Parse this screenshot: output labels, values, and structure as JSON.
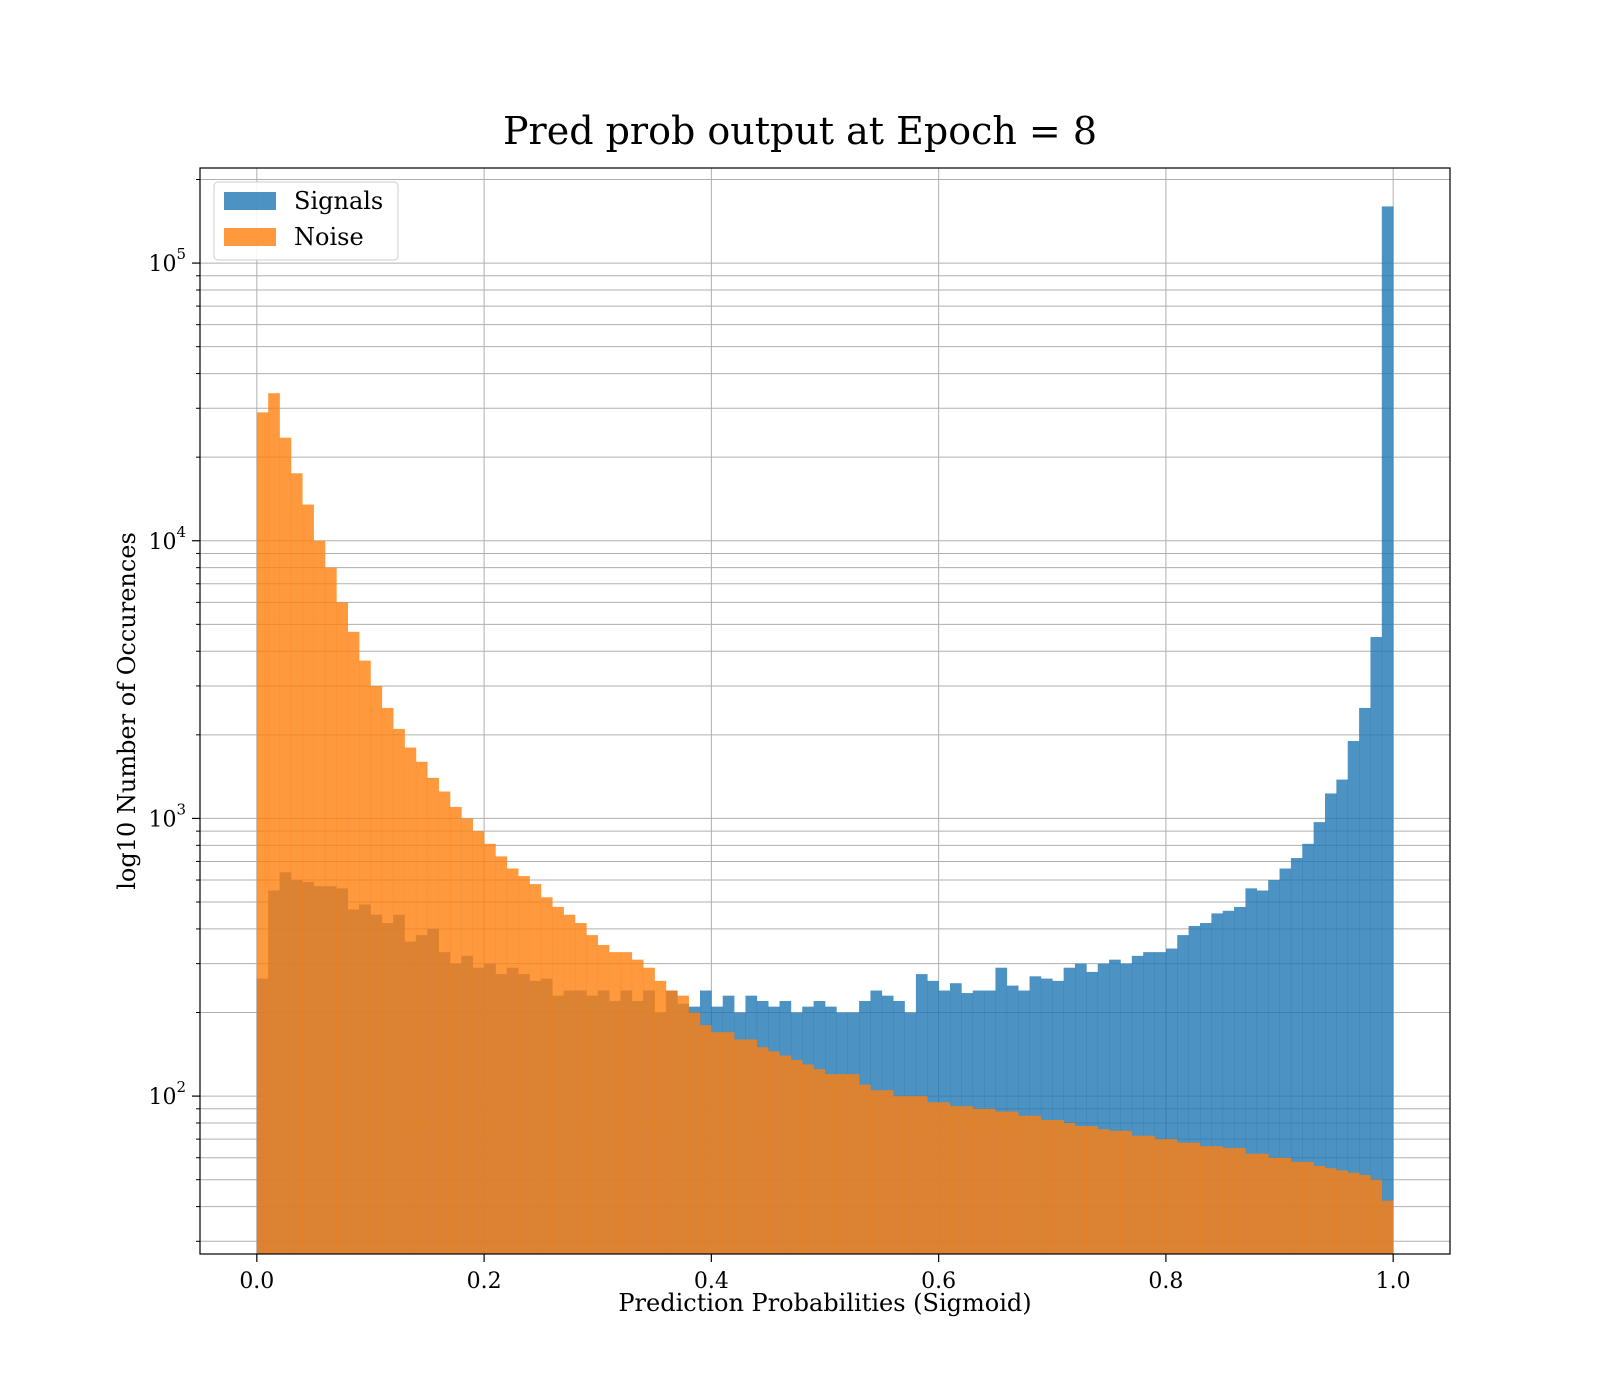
{
  "chart_data": {
    "type": "bar",
    "title": "Pred prob output at Epoch = 8",
    "xlabel": "Prediction Probabilities (Sigmoid)",
    "ylabel": "log10 Number of Occurences",
    "xlim": [
      -0.05,
      1.05
    ],
    "ylim": [
      27,
      220000
    ],
    "yscale": "log",
    "grid": true,
    "legend_position": "top-left",
    "x_ticks": [
      {
        "value": 0.0,
        "label": "0.0"
      },
      {
        "value": 0.2,
        "label": "0.2"
      },
      {
        "value": 0.4,
        "label": "0.4"
      },
      {
        "value": 0.6,
        "label": "0.6"
      },
      {
        "value": 0.8,
        "label": "0.8"
      },
      {
        "value": 1.0,
        "label": "1.0"
      }
    ],
    "y_ticks": [
      {
        "value": 100,
        "base": "10",
        "exp": "2"
      },
      {
        "value": 1000,
        "base": "10",
        "exp": "3"
      },
      {
        "value": 10000,
        "base": "10",
        "exp": "4"
      },
      {
        "value": 100000,
        "base": "10",
        "exp": "5"
      }
    ],
    "bin_start": 0.0,
    "bin_width": 0.01,
    "series": [
      {
        "name": "Signals",
        "color": "#1f77b4",
        "opacity": 0.8,
        "values": [
          265,
          550,
          640,
          600,
          590,
          570,
          570,
          560,
          470,
          490,
          450,
          420,
          450,
          360,
          380,
          400,
          330,
          300,
          320,
          290,
          300,
          275,
          290,
          275,
          260,
          265,
          230,
          240,
          240,
          230,
          240,
          220,
          240,
          220,
          240,
          200,
          240,
          215,
          210,
          240,
          210,
          230,
          200,
          230,
          220,
          210,
          220,
          200,
          210,
          220,
          210,
          200,
          200,
          220,
          240,
          230,
          220,
          200,
          275,
          260,
          240,
          255,
          235,
          240,
          240,
          290,
          250,
          240,
          270,
          265,
          260,
          290,
          300,
          280,
          300,
          310,
          300,
          320,
          330,
          330,
          340,
          380,
          410,
          420,
          455,
          465,
          480,
          560,
          550,
          600,
          660,
          720,
          810,
          970,
          1230,
          1380,
          1900,
          2500,
          4500,
          160000
        ]
      },
      {
        "name": "Noise",
        "color": "#ff7f0e",
        "opacity": 0.8,
        "values": [
          29000,
          34000,
          23500,
          17500,
          13500,
          10000,
          8000,
          6000,
          4700,
          3700,
          3000,
          2500,
          2100,
          1800,
          1600,
          1400,
          1250,
          1100,
          1000,
          900,
          810,
          730,
          660,
          620,
          580,
          520,
          480,
          450,
          420,
          380,
          350,
          330,
          330,
          310,
          290,
          260,
          240,
          230,
          200,
          180,
          170,
          170,
          160,
          160,
          150,
          145,
          140,
          135,
          130,
          125,
          120,
          120,
          120,
          110,
          105,
          105,
          100,
          100,
          100,
          95,
          95,
          92,
          92,
          90,
          90,
          88,
          88,
          85,
          85,
          82,
          82,
          80,
          78,
          78,
          76,
          75,
          75,
          72,
          72,
          70,
          70,
          68,
          68,
          66,
          66,
          65,
          65,
          62,
          62,
          60,
          60,
          58,
          58,
          56,
          55,
          54,
          53,
          52,
          50,
          42
        ]
      }
    ]
  }
}
